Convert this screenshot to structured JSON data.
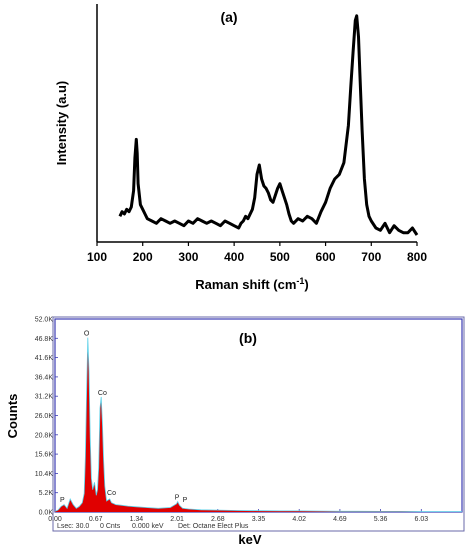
{
  "chart_data": [
    {
      "type": "line",
      "panel_label": "(a)",
      "xlabel": "Raman shift (cm",
      "xlabel_sup": "-1",
      "xlabel_end": ")",
      "ylabel": "Intensity (a.u)",
      "xlim": [
        100,
        800
      ],
      "xticks": [
        "100",
        "200",
        "300",
        "400",
        "500",
        "600",
        "700",
        "800"
      ],
      "y_ticks_shown": false,
      "color": "#000000",
      "x": [
        150,
        155,
        160,
        165,
        170,
        175,
        180,
        183,
        186,
        188,
        190,
        195,
        200,
        205,
        210,
        220,
        230,
        240,
        250,
        260,
        270,
        280,
        290,
        300,
        310,
        320,
        330,
        340,
        350,
        360,
        370,
        380,
        390,
        400,
        410,
        415,
        420,
        425,
        430,
        440,
        445,
        450,
        455,
        460,
        465,
        470,
        475,
        480,
        485,
        490,
        495,
        500,
        505,
        510,
        515,
        520,
        525,
        530,
        540,
        550,
        560,
        570,
        580,
        590,
        600,
        610,
        620,
        630,
        640,
        650,
        655,
        660,
        665,
        668,
        672,
        675,
        680,
        685,
        690,
        695,
        700,
        710,
        720,
        730,
        740,
        750,
        760,
        770,
        780,
        790,
        800
      ],
      "y": [
        11,
        13,
        12,
        14,
        13,
        15,
        22,
        36,
        44,
        38,
        25,
        16,
        14,
        12,
        10,
        9,
        8,
        10,
        9,
        8,
        9,
        8,
        7,
        9,
        8,
        10,
        9,
        8,
        9,
        8,
        7,
        9,
        8,
        7,
        6,
        8,
        9,
        11,
        10,
        14,
        19,
        29,
        33,
        27,
        24,
        23,
        21,
        18,
        17,
        20,
        23,
        25,
        22,
        19,
        16,
        12,
        9,
        8,
        10,
        9,
        11,
        10,
        8,
        13,
        17,
        23,
        27,
        29,
        34,
        50,
        66,
        81,
        95,
        97,
        88,
        72,
        48,
        27,
        16,
        11,
        9,
        6,
        5,
        8,
        4,
        7,
        5,
        4,
        4,
        6,
        3
      ]
    },
    {
      "type": "area",
      "panel_label": "(b)",
      "xlabel": "keV",
      "ylabel": "Counts",
      "xlim": [
        0.0,
        6.7
      ],
      "ylim": [
        0.0,
        52.0
      ],
      "yticks": [
        "0.0K",
        "5.2K",
        "10.4K",
        "15.6K",
        "20.8K",
        "26.0K",
        "31.2K",
        "36.4K",
        "41.6K",
        "46.8K",
        "52.0K"
      ],
      "xticks": [
        "0.00",
        "0.67",
        "1.34",
        "2.01",
        "2.68",
        "3.35",
        "4.02",
        "4.69",
        "5.36",
        "6.03"
      ],
      "fill_color": "#e00000",
      "outline_color": "#5bd0e8",
      "peak_labels": [
        {
          "label": "P",
          "x": 0.12,
          "y": 2.2
        },
        {
          "label": "O",
          "x": 0.52,
          "y": 47.0
        },
        {
          "label": "Co",
          "x": 0.78,
          "y": 31.0
        },
        {
          "label": "Co",
          "x": 0.93,
          "y": 4.0
        },
        {
          "label": "P",
          "x": 2.01,
          "y": 2.8
        },
        {
          "label": "P",
          "x": 2.14,
          "y": 2.2
        }
      ],
      "x": [
        0.0,
        0.05,
        0.1,
        0.15,
        0.2,
        0.25,
        0.3,
        0.35,
        0.4,
        0.45,
        0.48,
        0.5,
        0.52,
        0.54,
        0.56,
        0.58,
        0.6,
        0.62,
        0.65,
        0.68,
        0.7,
        0.72,
        0.74,
        0.76,
        0.78,
        0.8,
        0.82,
        0.85,
        0.9,
        0.93,
        0.97,
        1.0,
        1.1,
        1.2,
        1.34,
        1.5,
        1.7,
        1.9,
        2.0,
        2.02,
        2.05,
        2.1,
        2.2,
        2.4,
        2.68,
        3.0,
        3.35,
        3.7,
        4.02,
        4.4,
        4.69,
        5.0,
        5.36,
        5.7,
        6.03,
        6.4,
        6.7
      ],
      "y": [
        0.2,
        0.5,
        1.5,
        2.0,
        1.0,
        3.5,
        2.0,
        1.0,
        1.5,
        2.5,
        5.0,
        15.0,
        32.0,
        47.0,
        38.0,
        20.0,
        9.0,
        6.0,
        8.0,
        4.5,
        6.0,
        12.0,
        28.0,
        31.0,
        24.0,
        14.0,
        7.0,
        3.0,
        3.5,
        2.5,
        2.2,
        2.0,
        1.8,
        1.6,
        1.4,
        1.2,
        1.0,
        1.2,
        2.2,
        2.8,
        1.8,
        1.0,
        0.8,
        0.6,
        0.5,
        0.4,
        0.35,
        0.3,
        0.3,
        0.25,
        0.2,
        0.2,
        0.15,
        0.15,
        0.1,
        0.1,
        0.1
      ]
    }
  ],
  "eds_footer": {
    "lsec": "Lsec: 30.0",
    "cnts": "0 Cnts",
    "kev": "0.000 keV",
    "det": "Det: Octane Elect Plus"
  }
}
